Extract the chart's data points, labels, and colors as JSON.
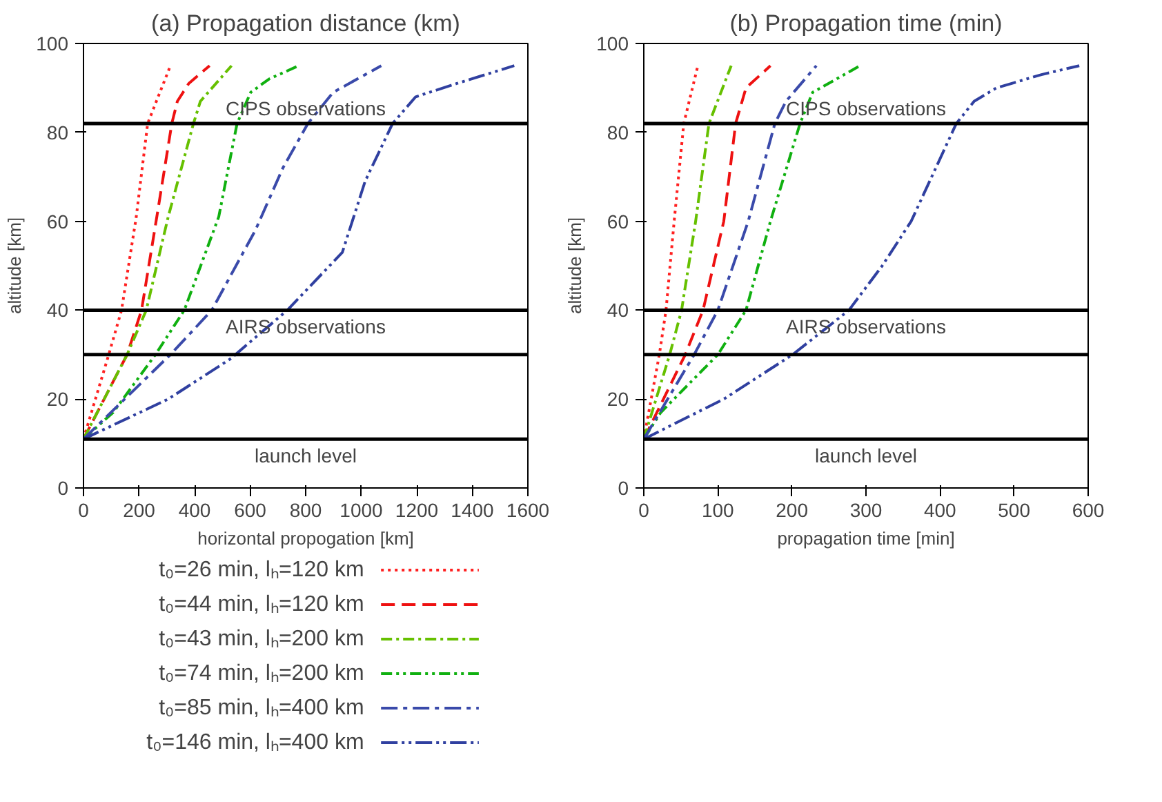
{
  "chart_data": [
    {
      "type": "line",
      "title": "(a) Propagation distance (km)",
      "xlabel": "horizontal propogation [km]",
      "ylabel": "altitude [km]",
      "xlim": [
        0,
        1600
      ],
      "xticks": [
        0,
        200,
        400,
        600,
        800,
        1000,
        1200,
        1400,
        1600
      ],
      "ylim": [
        0,
        100
      ],
      "yticks": [
        0,
        20,
        40,
        60,
        80,
        100
      ],
      "grid": false,
      "legend": "bottom",
      "ref_lines": [
        {
          "axis": "y",
          "value": 82,
          "label": "CIPS observations"
        },
        {
          "axis": "y",
          "value": 40,
          "label": "AIRS observations"
        },
        {
          "axis": "y",
          "value": 30
        },
        {
          "axis": "y",
          "value": 11,
          "label": "launch level"
        }
      ],
      "series": [
        {
          "name": "t₀=26 min, lₕ=120 km",
          "color": "#ff2020",
          "line_style": "dotted",
          "x": [
            0,
            91,
            137,
            190,
            231,
            313
          ],
          "values": [
            11,
            30,
            40,
            61,
            82,
            95
          ]
        },
        {
          "name": "t₀=44 min, lₕ=120 km",
          "color": "#ee1111",
          "line_style": "dashed",
          "x": [
            0,
            157,
            209,
            264,
            318,
            338,
            379,
            454
          ],
          "values": [
            11,
            30,
            40,
            61,
            82,
            87,
            91,
            95
          ]
        },
        {
          "name": "t₀=43 min, lₕ=200 km",
          "color": "#66c000",
          "line_style": "dashdot",
          "x": [
            0,
            157,
            226,
            305,
            396,
            421,
            533
          ],
          "values": [
            11,
            30,
            40,
            61,
            82,
            87,
            95
          ]
        },
        {
          "name": "t₀=74 min, lₕ=200 km",
          "color": "#10b010",
          "line_style": "dashdotdot",
          "x": [
            0,
            107,
            259,
            363,
            487,
            553,
            602,
            668,
            775
          ],
          "values": [
            11,
            17,
            30,
            40,
            61,
            82,
            89,
            92,
            95
          ]
        },
        {
          "name": "t₀=85 min, lₕ=400 km",
          "color": "#3a4aaa",
          "line_style": "longdashdot",
          "x": [
            0,
            313,
            462,
            619,
            718,
            808,
            899,
            1072
          ],
          "values": [
            11,
            30,
            40,
            58,
            72,
            82,
            89,
            95
          ]
        },
        {
          "name": "t₀=146 min, lₕ=400 km",
          "color": "#3040a0",
          "line_style": "longdashdotdot",
          "x": [
            0,
            305,
            528,
            734,
            932,
            1014,
            1113,
            1196,
            1344,
            1551
          ],
          "values": [
            11,
            20,
            29,
            40,
            53,
            69,
            82,
            88,
            91,
            95
          ]
        }
      ]
    },
    {
      "type": "line",
      "title": "(b) Propagation time (min)",
      "xlabel": "propagation time [min]",
      "ylabel": "altitude [km]",
      "xlim": [
        0,
        600
      ],
      "xticks": [
        0,
        100,
        200,
        300,
        400,
        500,
        600
      ],
      "ylim": [
        0,
        100
      ],
      "yticks": [
        0,
        20,
        40,
        60,
        80,
        100
      ],
      "grid": false,
      "ref_lines": [
        {
          "axis": "y",
          "value": 82,
          "label": "CIPS observations"
        },
        {
          "axis": "y",
          "value": 40,
          "label": "AIRS observations"
        },
        {
          "axis": "y",
          "value": 30
        },
        {
          "axis": "y",
          "value": 11,
          "label": "launch level"
        }
      ],
      "series": [
        {
          "color": "#ff2020",
          "line_style": "dotted",
          "x": [
            0,
            21,
            30,
            41,
            54,
            73
          ],
          "values": [
            11,
            30,
            40,
            60,
            82,
            95
          ]
        },
        {
          "color": "#ee1111",
          "line_style": "dashed",
          "x": [
            0,
            56,
            80,
            108,
            124,
            138,
            171
          ],
          "values": [
            11,
            30,
            40,
            60,
            82,
            90,
            95
          ]
        },
        {
          "color": "#66c000",
          "line_style": "dashdot",
          "x": [
            0,
            35,
            51,
            70,
            88,
            118
          ],
          "values": [
            11,
            30,
            40,
            60,
            82,
            95
          ]
        },
        {
          "color": "#10b010",
          "line_style": "dashdotdot",
          "x": [
            0,
            23,
            100,
            138,
            171,
            211,
            228,
            292
          ],
          "values": [
            11,
            17,
            30,
            40,
            60,
            82,
            89,
            95
          ]
        },
        {
          "color": "#3a4aaa",
          "line_style": "longdashdot",
          "x": [
            0,
            68,
            100,
            141,
            177,
            192,
            233
          ],
          "values": [
            11,
            30,
            40,
            60,
            82,
            87,
            95
          ]
        },
        {
          "color": "#3040a0",
          "line_style": "longdashdotdot",
          "x": [
            0,
            108,
            201,
            277,
            322,
            361,
            422,
            446,
            476,
            537,
            588
          ],
          "values": [
            11,
            20,
            30,
            40,
            50,
            60,
            82,
            87,
            90,
            93,
            95
          ]
        }
      ]
    }
  ]
}
